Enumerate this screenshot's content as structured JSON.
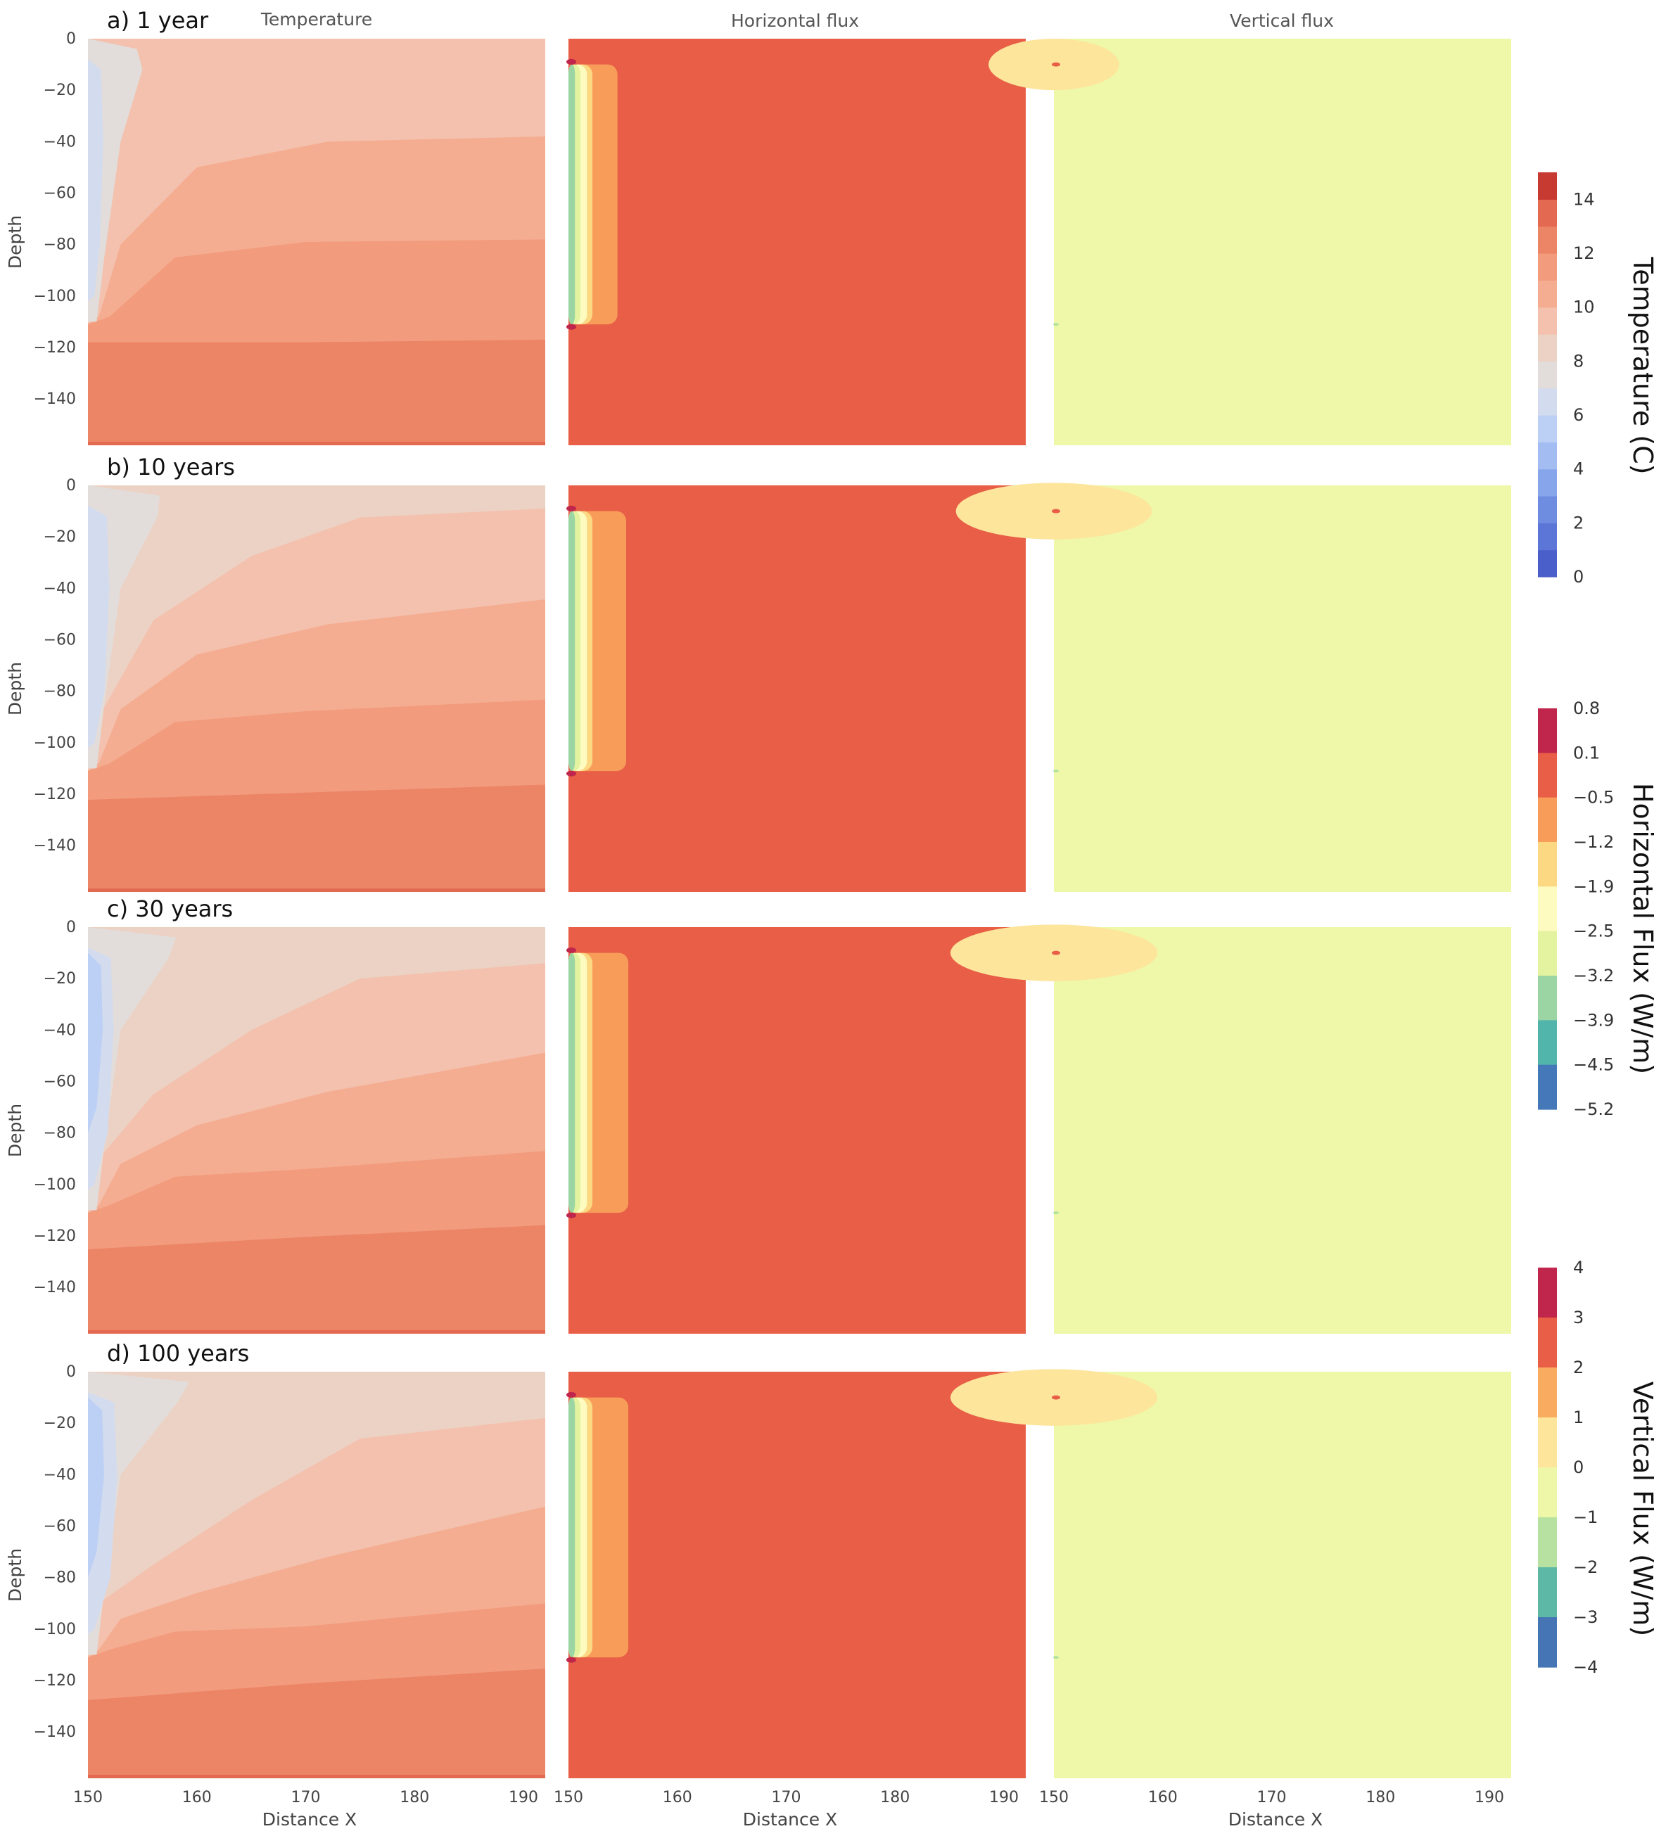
{
  "chart_data": {
    "type": "heatmap",
    "column_titles": [
      "Temperature",
      "Horizontal flux",
      "Vertical flux"
    ],
    "row_labels": [
      "a) 1 year",
      "b) 10 years",
      "c) 30 years",
      "d) 100 years"
    ],
    "xlabel": "Distance X",
    "ylabel": "Depth",
    "xlim": [
      150,
      192
    ],
    "ylim": [
      -158,
      0
    ],
    "x_ticks": [
      "150",
      "160",
      "170",
      "180",
      "190"
    ],
    "y_ticks": [
      "0",
      "−20",
      "−40",
      "−60",
      "−80",
      "−100",
      "−120",
      "−140"
    ],
    "grid": false,
    "colorbars": [
      {
        "label": "Temperature (C)",
        "ticks": [
          "0",
          "2",
          "4",
          "6",
          "8",
          "10",
          "12",
          "14"
        ],
        "range": [
          0,
          15
        ],
        "colors": [
          "#4a5fc9",
          "#5b76d6",
          "#6f8de0",
          "#87a5ea",
          "#a3bdf2",
          "#bccff4",
          "#d3dbee",
          "#e2ddda",
          "#ecd2c5",
          "#f3c1ad",
          "#f5ad91",
          "#f29b7d",
          "#ec8466",
          "#e36a51",
          "#c73a32"
        ]
      },
      {
        "label": "Horizontal Flux (W/m)",
        "ticks": [
          "0.8",
          "0.1",
          "−0.5",
          "−1.2",
          "−1.9",
          "−2.5",
          "−3.2",
          "−3.9",
          "−4.5",
          "−5.2"
        ],
        "colors": [
          "#c0254b",
          "#e85e47",
          "#f89d59",
          "#fcd883",
          "#fdfbbf",
          "#e4f3a0",
          "#9bd5a3",
          "#52b5ab",
          "#4478b9"
        ]
      },
      {
        "label": "Vertical Flux (W/m)",
        "ticks": [
          "4",
          "3",
          "2",
          "1",
          "0",
          "−1",
          "−2",
          "−3",
          "−4"
        ],
        "colors": [
          "#c0254b",
          "#e85e47",
          "#f9ab5f",
          "#fde59c",
          "#eef7a8",
          "#b7e1a1",
          "#5db9a5",
          "#4575b4"
        ]
      }
    ],
    "fields": {
      "horizontal_flux_background": "#e85e47",
      "vertical_flux_background": "#eef8a8"
    }
  }
}
